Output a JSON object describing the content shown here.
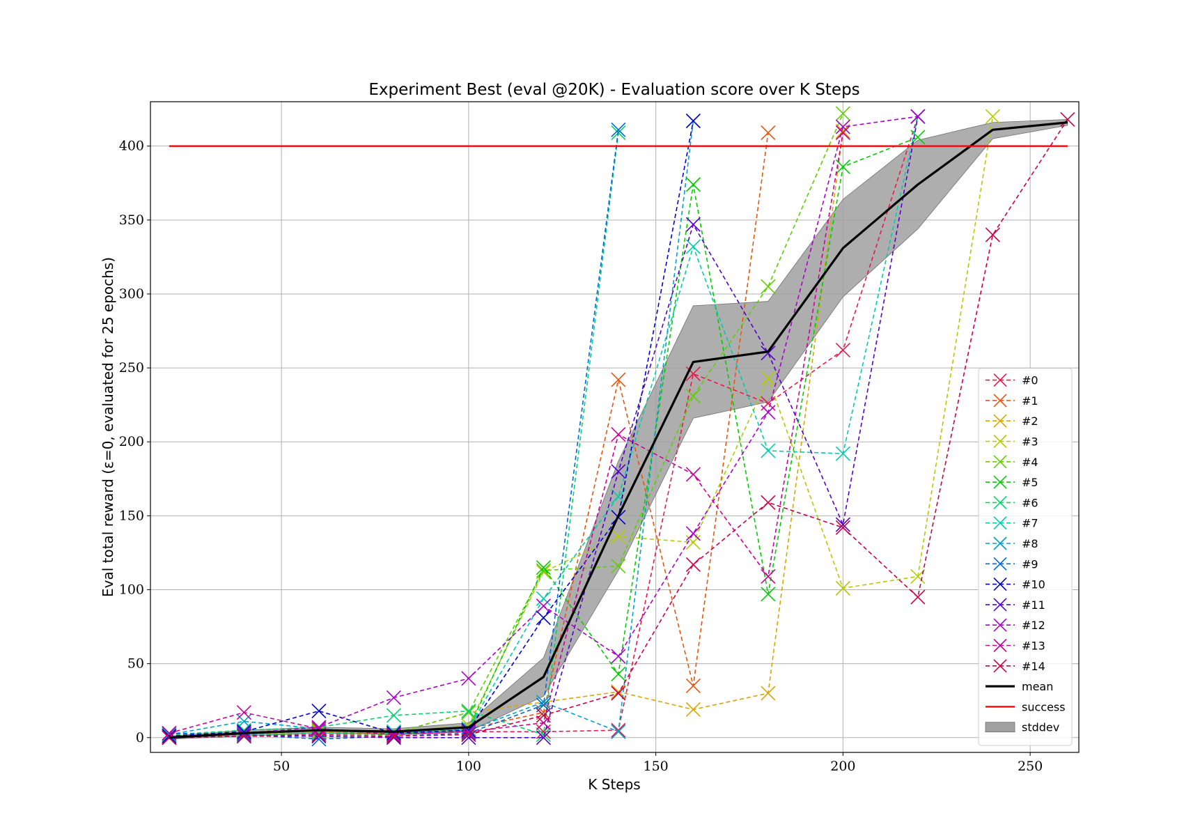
{
  "chart_data": {
    "type": "line",
    "title": "Experiment Best (eval @20K) - Evaluation score over K Steps",
    "xlabel": "K Steps",
    "ylabel": "Eval total reward (ε=0, evaluated for 25 epochs)",
    "xlim": [
      15,
      263
    ],
    "ylim": [
      -10,
      430
    ],
    "xticks": [
      50,
      100,
      150,
      200,
      250
    ],
    "yticks": [
      0,
      50,
      100,
      150,
      200,
      250,
      300,
      350,
      400
    ],
    "grid": true,
    "legend_position": "lower right",
    "series": [
      {
        "name": "#0",
        "color": "#e6194b",
        "style": "dashed-x",
        "x": [
          20,
          40,
          60,
          80,
          100,
          120,
          140,
          160,
          180,
          200,
          220
        ],
        "y": [
          0,
          2,
          3,
          2,
          4,
          4,
          5,
          246,
          226,
          262,
          420
        ]
      },
      {
        "name": "#1",
        "color": "#e6550d",
        "style": "dashed-x",
        "x": [
          20,
          40,
          60,
          80,
          100,
          120,
          140,
          160,
          180
        ],
        "y": [
          1,
          3,
          4,
          2,
          6,
          17,
          242,
          35,
          409
        ]
      },
      {
        "name": "#2",
        "color": "#d8a500",
        "style": "dashed-x",
        "x": [
          20,
          40,
          60,
          80,
          100,
          120,
          140,
          160,
          180,
          200
        ],
        "y": [
          0,
          2,
          4,
          3,
          17,
          24,
          31,
          19,
          30,
          410
        ]
      },
      {
        "name": "#3",
        "color": "#b0cc00",
        "style": "dashed-x",
        "x": [
          20,
          40,
          60,
          80,
          100,
          120,
          140,
          160,
          180,
          200,
          220,
          240
        ],
        "y": [
          1,
          3,
          5,
          4,
          8,
          112,
          136,
          132,
          243,
          101,
          109,
          420
        ]
      },
      {
        "name": "#4",
        "color": "#5ecf00",
        "style": "dashed-x",
        "x": [
          20,
          40,
          60,
          80,
          100,
          120,
          140,
          160,
          180,
          200
        ],
        "y": [
          2,
          4,
          5,
          3,
          17,
          113,
          116,
          231,
          305,
          422
        ]
      },
      {
        "name": "#5",
        "color": "#00cc00",
        "style": "dashed-x",
        "x": [
          20,
          40,
          60,
          80,
          100,
          120,
          140,
          160,
          180,
          200,
          220
        ],
        "y": [
          0,
          1,
          3,
          2,
          6,
          115,
          43,
          374,
          97,
          386,
          406
        ]
      },
      {
        "name": "#6",
        "color": "#00d46a",
        "style": "dashed-x",
        "x": [
          20,
          40,
          60,
          80,
          100,
          120,
          140
        ],
        "y": [
          2,
          5,
          7,
          15,
          18,
          2,
          409
        ]
      },
      {
        "name": "#7",
        "color": "#00ccaa",
        "style": "dashed-x",
        "x": [
          20,
          40,
          60,
          80,
          100,
          120,
          140,
          160,
          180,
          200,
          220
        ],
        "y": [
          1,
          2,
          3,
          4,
          6,
          94,
          163,
          332,
          194,
          192,
          420
        ]
      },
      {
        "name": "#8",
        "color": "#00a0cc",
        "style": "dashed-x",
        "x": [
          20,
          40,
          60,
          80,
          100,
          120,
          140,
          160
        ],
        "y": [
          2,
          11,
          6,
          3,
          5,
          24,
          4,
          417
        ]
      },
      {
        "name": "#9",
        "color": "#0066dd",
        "style": "dashed-x",
        "x": [
          20,
          40,
          60,
          80,
          100,
          120,
          140
        ],
        "y": [
          3,
          2,
          -1,
          1,
          3,
          22,
          411
        ]
      },
      {
        "name": "#10",
        "color": "#0000cc",
        "style": "dashed-x",
        "x": [
          20,
          40,
          60,
          80,
          100,
          120,
          140,
          160
        ],
        "y": [
          1,
          4,
          18,
          3,
          5,
          81,
          149,
          417
        ]
      },
      {
        "name": "#11",
        "color": "#5500cc",
        "style": "dashed-x",
        "x": [
          20,
          40,
          60,
          80,
          100,
          120,
          140,
          160,
          180,
          200,
          220
        ],
        "y": [
          0,
          1,
          1,
          0,
          0,
          0,
          180,
          347,
          260,
          144,
          420
        ]
      },
      {
        "name": "#12",
        "color": "#aa00cc",
        "style": "dashed-x",
        "x": [
          20,
          40,
          60,
          80,
          100,
          120,
          140,
          160,
          180,
          200,
          220
        ],
        "y": [
          0,
          3,
          7,
          27,
          40,
          89,
          55,
          138,
          220,
          413,
          420
        ]
      },
      {
        "name": "#13",
        "color": "#cc0099",
        "style": "dashed-x",
        "x": [
          20,
          40,
          60,
          80,
          100,
          120,
          140,
          160,
          180,
          200
        ],
        "y": [
          3,
          17,
          6,
          2,
          4,
          10,
          205,
          178,
          109,
          409
        ]
      },
      {
        "name": "#14",
        "color": "#cc0044",
        "style": "dashed-x",
        "x": [
          20,
          40,
          60,
          80,
          100,
          120,
          140,
          160,
          180,
          200,
          220,
          240,
          260
        ],
        "y": [
          0,
          1,
          2,
          1,
          2,
          15,
          30,
          117,
          159,
          142,
          95,
          340,
          418
        ]
      }
    ],
    "mean": {
      "name": "mean",
      "color": "#000000",
      "x": [
        20,
        40,
        60,
        80,
        100,
        120,
        140,
        160,
        180,
        200,
        220,
        240,
        260
      ],
      "y": [
        0,
        3,
        5,
        4,
        7,
        41,
        150,
        254,
        261,
        331,
        374,
        411,
        416
      ]
    },
    "stddev": {
      "name": "stddev",
      "color": "#a0a0a0",
      "x": [
        20,
        40,
        60,
        80,
        100,
        120,
        140,
        160,
        180,
        200,
        220,
        240,
        260
      ],
      "lower": [
        -1,
        1,
        3,
        2,
        4,
        28,
        113,
        216,
        227,
        298,
        344,
        405,
        414
      ],
      "upper": [
        1,
        5,
        7,
        6,
        10,
        54,
        187,
        292,
        295,
        364,
        404,
        416,
        418
      ]
    },
    "success": {
      "name": "success",
      "color": "#ff0000",
      "y": 400,
      "x": [
        20,
        260
      ]
    }
  }
}
